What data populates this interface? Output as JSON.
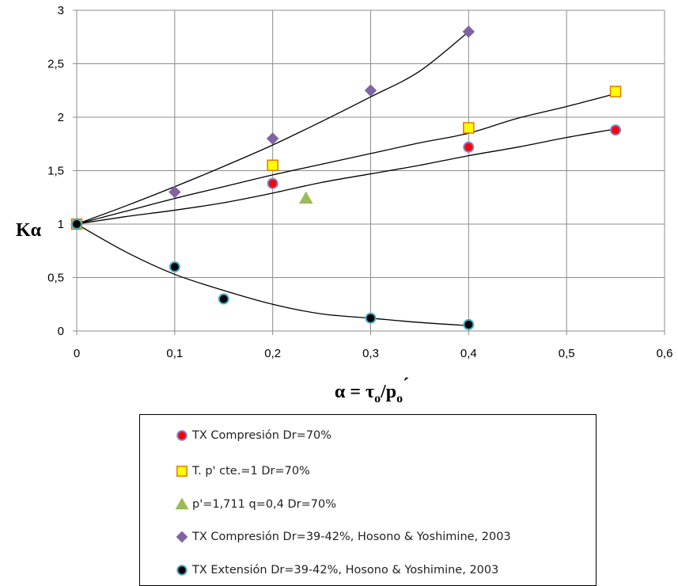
{
  "chart_data": {
    "type": "scatter",
    "ylabel": "Kα",
    "xlabel": {
      "prefix": "α  = τ",
      "sub1": "o",
      "mid": "/p",
      "sub2": "o",
      "suffix": "´"
    },
    "xlim": [
      0,
      0.6
    ],
    "ylim": [
      0,
      3
    ],
    "x_ticks": [
      0,
      0.1,
      0.2,
      0.3,
      0.4,
      0.5,
      0.6
    ],
    "x_tick_labels": [
      "0",
      "0,1",
      "0,2",
      "0,3",
      "0,4",
      "0,5",
      "0,6"
    ],
    "y_ticks": [
      0,
      0.5,
      1,
      1.5,
      2,
      2.5,
      3
    ],
    "y_tick_labels": [
      "0",
      "0,5",
      "1",
      "1,5",
      "2",
      "2,5",
      "3"
    ],
    "grid": true,
    "legend_position": "bottom",
    "series": [
      {
        "name": "TX Compresión Dr=70%",
        "marker": "circle",
        "fill": "#ff0000",
        "stroke": "#7f7fc8",
        "points": [
          [
            0,
            1.0
          ],
          [
            0.2,
            1.38
          ],
          [
            0.4,
            1.72
          ],
          [
            0.55,
            1.88
          ]
        ],
        "trend": [
          [
            0,
            1.0
          ],
          [
            0.05,
            1.07
          ],
          [
            0.1,
            1.13
          ],
          [
            0.15,
            1.2
          ],
          [
            0.2,
            1.29
          ],
          [
            0.25,
            1.39
          ],
          [
            0.3,
            1.47
          ],
          [
            0.35,
            1.55
          ],
          [
            0.4,
            1.64
          ],
          [
            0.45,
            1.72
          ],
          [
            0.5,
            1.81
          ],
          [
            0.55,
            1.89
          ]
        ]
      },
      {
        "name": "T. p' cte.=1 Dr=70%",
        "marker": "square",
        "fill": "#ffff00",
        "stroke": "#e07800",
        "points": [
          [
            0,
            1.0
          ],
          [
            0.2,
            1.55
          ],
          [
            0.4,
            1.9
          ],
          [
            0.55,
            2.24
          ]
        ],
        "trend": [
          [
            0,
            1.0
          ],
          [
            0.05,
            1.12
          ],
          [
            0.1,
            1.24
          ],
          [
            0.15,
            1.35
          ],
          [
            0.2,
            1.46
          ],
          [
            0.25,
            1.56
          ],
          [
            0.3,
            1.66
          ],
          [
            0.35,
            1.76
          ],
          [
            0.4,
            1.85
          ],
          [
            0.45,
            1.99
          ],
          [
            0.5,
            2.1
          ],
          [
            0.55,
            2.22
          ]
        ]
      },
      {
        "name": "p'=1,711 q=0,4 Dr=70%",
        "marker": "triangle",
        "fill": "#9bbb59",
        "stroke": "#9bbb59",
        "points": [
          [
            0.234,
            1.24
          ]
        ],
        "trend": []
      },
      {
        "name": "TX Compresión Dr=39-42%, Hosono & Yoshimine, 2003",
        "marker": "diamond",
        "fill": "#8064a2",
        "stroke": "#8064a2",
        "points": [
          [
            0,
            1.0
          ],
          [
            0.1,
            1.3
          ],
          [
            0.2,
            1.8
          ],
          [
            0.3,
            2.25
          ],
          [
            0.4,
            2.8
          ]
        ],
        "trend": [
          [
            0,
            1.0
          ],
          [
            0.05,
            1.17
          ],
          [
            0.1,
            1.35
          ],
          [
            0.15,
            1.54
          ],
          [
            0.2,
            1.74
          ],
          [
            0.25,
            1.96
          ],
          [
            0.3,
            2.19
          ],
          [
            0.35,
            2.43
          ],
          [
            0.4,
            2.8
          ]
        ]
      },
      {
        "name": "TX Extensión Dr=39-42%, Hosono & Yoshimine, 2003",
        "marker": "circle",
        "fill": "#000000",
        "stroke": "#4bacc6",
        "points": [
          [
            0,
            1.0
          ],
          [
            0.1,
            0.6
          ],
          [
            0.15,
            0.3
          ],
          [
            0.3,
            0.12
          ],
          [
            0.4,
            0.06
          ]
        ],
        "trend": [
          [
            0,
            1.0
          ],
          [
            0.05,
            0.74
          ],
          [
            0.1,
            0.53
          ],
          [
            0.15,
            0.38
          ],
          [
            0.2,
            0.25
          ],
          [
            0.25,
            0.16
          ],
          [
            0.3,
            0.12
          ],
          [
            0.35,
            0.08
          ],
          [
            0.4,
            0.05
          ]
        ]
      }
    ]
  }
}
